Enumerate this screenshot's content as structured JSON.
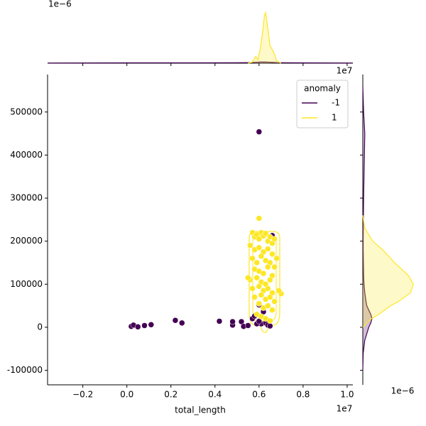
{
  "chart_data": [
    {
      "type": "scatter",
      "x_label": "total_length",
      "x_offset": "1e7",
      "xlim": [
        -0.36,
        1.026
      ],
      "xticks": [
        {
          "value": -0.2,
          "label": "−0.2"
        },
        {
          "value": 0,
          "label": "0.0"
        },
        0.2,
        0.4,
        0.6,
        0.8,
        {
          "value": 1,
          "label": "1.0"
        }
      ],
      "ylim": [
        -133700,
        587000
      ],
      "yticks": [
        {
          "value": -100000,
          "label": "-100000"
        },
        0,
        100000,
        200000,
        300000,
        400000,
        500000
      ],
      "legend_title": "anomaly",
      "legend": "upper right",
      "series": [
        {
          "name": "-1",
          "color": "#440154",
          "x": [
            0.02,
            0.03,
            0.05,
            0.08,
            0.11,
            0.22,
            0.25,
            0.42,
            0.48,
            0.48,
            0.52,
            0.53,
            0.55,
            0.57,
            0.58,
            0.6,
            0.61,
            0.62,
            0.63,
            0.64,
            0.65,
            0.66,
            0.6,
            0.59,
            0.6
          ],
          "y": [
            2000,
            5000,
            1000,
            4000,
            6000,
            16000,
            10000,
            14000,
            5000,
            13000,
            13000,
            2000,
            4000,
            20000,
            26000,
            52000,
            8000,
            36000,
            10000,
            5000,
            3000,
            213000,
            454000,
            8000,
            14000
          ]
        },
        {
          "name": "1",
          "color": "#fde725",
          "x": [
            0.6,
            0.57,
            0.58,
            0.59,
            0.6,
            0.61,
            0.62,
            0.63,
            0.64,
            0.65,
            0.66,
            0.67,
            0.56,
            0.58,
            0.6,
            0.62,
            0.64,
            0.66,
            0.68,
            0.57,
            0.59,
            0.61,
            0.63,
            0.65,
            0.67,
            0.58,
            0.6,
            0.62,
            0.64,
            0.66,
            0.56,
            0.59,
            0.61,
            0.63,
            0.65,
            0.57,
            0.6,
            0.62,
            0.64,
            0.66,
            0.58,
            0.61,
            0.63,
            0.65,
            0.67,
            0.7,
            0.69,
            0.55,
            0.6,
            0.62,
            0.64,
            0.66,
            0.59,
            0.61,
            0.63,
            0.65
          ],
          "y": [
            253000,
            220000,
            210000,
            215000,
            205000,
            220000,
            212000,
            218000,
            200000,
            210000,
            195000,
            205000,
            190000,
            180000,
            185000,
            175000,
            182000,
            170000,
            160000,
            160000,
            150000,
            165000,
            155000,
            150000,
            140000,
            135000,
            130000,
            125000,
            140000,
            120000,
            110000,
            115000,
            105000,
            100000,
            110000,
            90000,
            95000,
            85000,
            90000,
            80000,
            70000,
            75000,
            65000,
            70000,
            60000,
            78000,
            85000,
            115000,
            55000,
            45000,
            50000,
            40000,
            30000,
            25000,
            20000,
            15000
          ]
        }
      ]
    },
    {
      "type": "kde",
      "orient": "top",
      "x_offset": "1e7",
      "y_offset": "1e−6",
      "ylim": [
        0,
        5
      ],
      "x": [
        -0.36,
        0.0,
        0.3,
        0.5,
        0.55,
        0.57,
        0.585,
        0.595,
        0.605,
        0.615,
        0.625,
        0.63,
        0.64,
        0.65,
        0.66,
        0.67,
        0.68,
        0.7,
        0.8,
        1.026
      ],
      "series": [
        {
          "color": "#440154",
          "values": [
            0.02,
            0.03,
            0.03,
            0.04,
            0.05,
            0.06,
            0.08,
            0.09,
            0.1,
            0.1,
            0.1,
            0.1,
            0.09,
            0.08,
            0.07,
            0.06,
            0.05,
            0.04,
            0.03,
            0.02
          ]
        },
        {
          "color": "#fde725",
          "values": [
            null,
            null,
            null,
            null,
            0,
            0.1,
            0.6,
            0.3,
            1.2,
            2.5,
            4.2,
            4.4,
            3.0,
            1.5,
            1.2,
            0.8,
            0.2,
            0,
            null,
            null
          ]
        }
      ]
    },
    {
      "type": "kde",
      "orient": "right",
      "x_offset": "1e−6",
      "xlim": [
        0,
        15
      ],
      "y": [
        -100000,
        -60000,
        -30000,
        0,
        10000,
        20000,
        30000,
        50000,
        60000,
        80000,
        100000,
        120000,
        150000,
        180000,
        200000,
        230000,
        260000,
        300000,
        400000,
        450000,
        500000,
        560000
      ],
      "series": [
        {
          "color": "#440154",
          "values": [
            0,
            0.1,
            0.5,
            1.5,
            2.0,
            2.3,
            2.0,
            1.0,
            0.8,
            0.5,
            0.3,
            0.2,
            0.15,
            0.1,
            0.1,
            0.12,
            0.15,
            0.2,
            0.4,
            0.5,
            0.2,
            0
          ]
        },
        {
          "color": "#fde725",
          "values": [
            null,
            null,
            null,
            0,
            1,
            2.2,
            4,
            7,
            9,
            12,
            12.7,
            11.5,
            8,
            5,
            2.5,
            0.5,
            0,
            null,
            null,
            null,
            null,
            null
          ]
        }
      ]
    }
  ]
}
